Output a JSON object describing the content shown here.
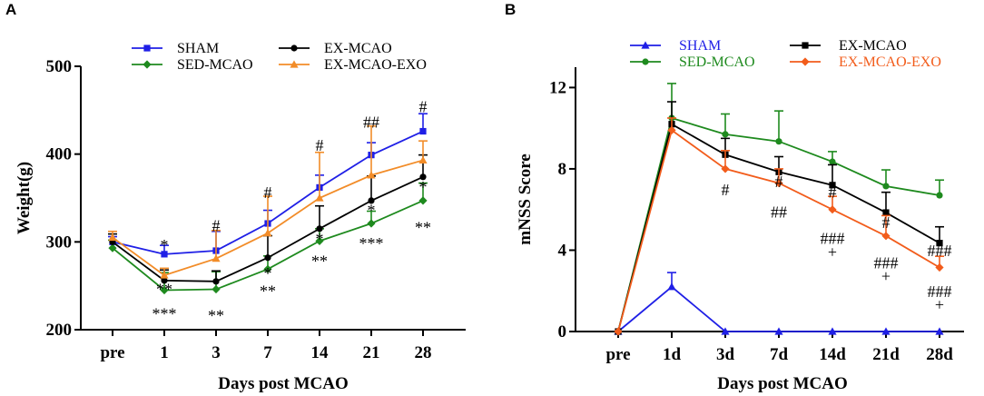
{
  "chart_data": [
    {
      "panel": "A",
      "type": "line",
      "xlabel": "Days post MCAO",
      "ylabel": "Weight(g)",
      "categories": [
        "pre",
        "1",
        "3",
        "7",
        "14",
        "21",
        "28"
      ],
      "ylim": [
        200,
        500
      ],
      "yticks": [
        200,
        300,
        400,
        500
      ],
      "legend_position": "top",
      "series": [
        {
          "name": "SHAM",
          "color": "#1f1fe6",
          "marker": "square",
          "values": [
            300,
            286,
            290,
            321,
            362,
            399,
            426
          ],
          "errors": [
            6,
            10,
            22,
            15,
            14,
            14,
            20
          ]
        },
        {
          "name": "SED-MCAO",
          "color": "#1e8a1e",
          "marker": "diamond",
          "values": [
            293,
            245,
            246,
            269,
            301,
            321,
            347
          ],
          "errors": [
            9,
            20,
            20,
            15,
            14,
            14,
            20
          ]
        },
        {
          "name": "EX-MCAO",
          "color": "#000000",
          "marker": "circle",
          "values": [
            300,
            256,
            255,
            282,
            315,
            347,
            374
          ],
          "errors": [
            9,
            12,
            12,
            25,
            26,
            28,
            25
          ]
        },
        {
          "name": "EX-MCAO-EXO",
          "color": "#f28c28",
          "marker": "triangle",
          "values": [
            305,
            262,
            281,
            310,
            350,
            376,
            393
          ],
          "errors": [
            7,
            8,
            32,
            42,
            52,
            56,
            22
          ]
        }
      ],
      "annotations": [
        {
          "text": "*",
          "x": "1",
          "y": 290
        },
        {
          "text": "#",
          "x": "3",
          "y": 312
        },
        {
          "text": "#",
          "x": "7",
          "y": 350
        },
        {
          "text": "#",
          "x": "14",
          "y": 404
        },
        {
          "text": "##",
          "x": "21",
          "y": 430
        },
        {
          "text": "#",
          "x": "28",
          "y": 448
        },
        {
          "text": "**",
          "x": "1",
          "y": 240
        },
        {
          "text": "***",
          "x": "1",
          "y": 212
        },
        {
          "text": "**",
          "x": "3",
          "y": 210
        },
        {
          "text": "*",
          "x": "7",
          "y": 258
        },
        {
          "text": "**",
          "x": "7",
          "y": 238
        },
        {
          "text": "*",
          "x": "14",
          "y": 297
        },
        {
          "text": "**",
          "x": "14",
          "y": 272
        },
        {
          "text": "*",
          "x": "21",
          "y": 330
        },
        {
          "text": "***",
          "x": "21",
          "y": 292
        },
        {
          "text": "*",
          "x": "28",
          "y": 356
        },
        {
          "text": "**",
          "x": "28",
          "y": 310
        }
      ]
    },
    {
      "panel": "B",
      "type": "line",
      "xlabel": "Days post MCAO",
      "ylabel": "mNSS Score",
      "categories": [
        "pre",
        "1d",
        "3d",
        "7d",
        "14d",
        "21d",
        "28d"
      ],
      "ylim": [
        0,
        13
      ],
      "yticks": [
        0,
        4,
        8,
        12
      ],
      "legend_position": "top",
      "series": [
        {
          "name": "SHAM",
          "color": "#1f1fe6",
          "marker": "triangle",
          "values": [
            0,
            2.2,
            0,
            0,
            0,
            0,
            0
          ],
          "errors": [
            0,
            0.7,
            0,
            0,
            0,
            0,
            0
          ]
        },
        {
          "name": "SED-MCAO",
          "color": "#1e8a1e",
          "marker": "circle",
          "values": [
            0,
            10.5,
            9.7,
            9.35,
            8.35,
            7.15,
            6.7
          ],
          "errors": [
            0,
            1.7,
            1.0,
            1.5,
            0.5,
            0.8,
            0.75
          ]
        },
        {
          "name": "EX-MCAO",
          "color": "#000000",
          "marker": "square",
          "values": [
            0,
            10.2,
            8.7,
            7.85,
            7.2,
            5.85,
            4.35
          ],
          "errors": [
            0,
            1.1,
            0.8,
            0.75,
            1.0,
            1.0,
            0.8
          ]
        },
        {
          "name": "EX-MCAO-EXO",
          "color": "#f25c1b",
          "marker": "diamond",
          "values": [
            0,
            9.9,
            8.0,
            7.3,
            6.0,
            4.7,
            3.15
          ],
          "errors": [
            0,
            0.6,
            0.9,
            0.7,
            0.65,
            1.0,
            0.55
          ]
        }
      ],
      "annotations": [
        {
          "text": "#",
          "x": "3d",
          "y": 6.7
        },
        {
          "text": "#",
          "x": "7d",
          "y": 7.1
        },
        {
          "text": "##",
          "x": "7d",
          "y": 5.6
        },
        {
          "text": "#",
          "x": "14d",
          "y": 6.6
        },
        {
          "text": "###",
          "x": "14d",
          "y": 4.3
        },
        {
          "text": "+",
          "x": "14d",
          "y": 3.65
        },
        {
          "text": "#",
          "x": "21d",
          "y": 5.1
        },
        {
          "text": "###",
          "x": "21d",
          "y": 3.1
        },
        {
          "text": "+",
          "x": "21d",
          "y": 2.45
        },
        {
          "text": "###",
          "x": "28d",
          "y": 3.7
        },
        {
          "text": "###",
          "x": "28d",
          "y": 1.7
        },
        {
          "text": "+",
          "x": "28d",
          "y": 1.05
        }
      ]
    }
  ]
}
